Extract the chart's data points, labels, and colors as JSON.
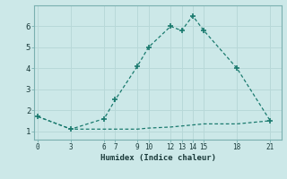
{
  "xlabel": "Humidex (Indice chaleur)",
  "bg_color": "#cce8e8",
  "grid_color": "#b8d8d8",
  "line_color": "#1a7a6e",
  "series1_x": [
    0,
    3,
    6,
    7,
    9,
    10,
    12,
    13,
    14,
    15,
    18,
    21
  ],
  "series1_y": [
    1.7,
    1.1,
    1.6,
    2.5,
    4.1,
    5.0,
    6.0,
    5.8,
    6.5,
    5.8,
    4.0,
    1.5
  ],
  "series2_x": [
    0,
    3,
    6,
    7,
    9,
    10,
    12,
    13,
    14,
    15,
    18,
    21
  ],
  "series2_y": [
    1.7,
    1.1,
    1.1,
    1.1,
    1.1,
    1.15,
    1.2,
    1.25,
    1.3,
    1.35,
    1.35,
    1.5
  ],
  "xticks": [
    0,
    3,
    6,
    7,
    9,
    10,
    12,
    13,
    14,
    15,
    18,
    21
  ],
  "yticks": [
    1,
    2,
    3,
    4,
    5,
    6
  ],
  "ylim": [
    0.6,
    7.0
  ],
  "xlim": [
    -0.3,
    22.0
  ]
}
